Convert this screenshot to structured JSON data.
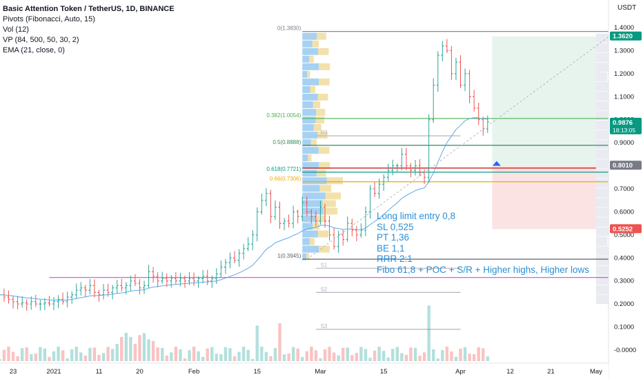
{
  "header": {
    "symbol_line": "Basic Attention Token / TetherUS, 1D, BINANCE",
    "indicators": [
      "Pivots (Fibonacci, Auto, 15)",
      "Vol (12)",
      "VP (84, 500, 50, 30, 2)",
      "EMA (21, close, 0)"
    ]
  },
  "currency": "USDT",
  "trade_note": [
    "Long limit entry 0,8",
    "SL 0,525",
    "PT 1,36",
    "BE 1,1",
    "RRR 2:1",
    "Fibo 61,8 + POC + S/R + Higher highs, Higher lows"
  ],
  "colors": {
    "up": "#26a69a",
    "down": "#ef5350",
    "ema": "#5aa9e6",
    "fib_pink": "#d44ad4",
    "profit_zone": "#e7f4ee",
    "loss_zone": "#fbe3e3",
    "vp_blue": "#4ea4e8",
    "vp_yellow": "#e8c35a",
    "grid_line": "#131722",
    "pivot": "#b2b5be"
  },
  "chart_data": {
    "type": "candlestick",
    "ylim": [
      -0.03,
      1.43
    ],
    "y_ticks": [
      "1.4000",
      "1.3000",
      "1.2000",
      "1.1000",
      "1.0000",
      "0.9000",
      "0.8000",
      "0.7000",
      "0.6000",
      "0.5000",
      "0.4000",
      "0.3000",
      "0.2000",
      "0.1000",
      "-0.0000"
    ],
    "x_ticks": [
      {
        "label": "23",
        "d": -9
      },
      {
        "label": "2021",
        "d": 0
      },
      {
        "label": "11",
        "d": 10
      },
      {
        "label": "20",
        "d": 19
      },
      {
        "label": "Feb",
        "d": 31
      },
      {
        "label": "15",
        "d": 45
      },
      {
        "label": "Mar",
        "d": 59
      },
      {
        "label": "15",
        "d": 73
      },
      {
        "label": "Apr",
        "d": 90
      },
      {
        "label": "12",
        "d": 101
      },
      {
        "label": "21",
        "d": 110
      },
      {
        "label": "May",
        "d": 120
      }
    ],
    "price_labels": [
      {
        "text": "1.3620",
        "value": 1.362,
        "color": "#089981"
      },
      {
        "text": "0.9876",
        "value": 0.9876,
        "sub": "18:13:05",
        "color": "#089981"
      },
      {
        "text": "0.8010",
        "value": 0.801,
        "color": "#787b86"
      },
      {
        "text": "0.5252",
        "value": 0.5252,
        "color": "#ef5350"
      }
    ],
    "fib_levels": [
      {
        "label": "0(1.3830)",
        "value": 1.383,
        "color": "#787b86"
      },
      {
        "label": "0.382(1.0054)",
        "value": 1.0054,
        "color": "#4caf50"
      },
      {
        "label": "0.5(0.8888)",
        "value": 0.8888,
        "color": "#2e8b57"
      },
      {
        "label": "0.618(0.7721)",
        "value": 0.7721,
        "color": "#089981"
      },
      {
        "label": "0.66(0.7306)",
        "value": 0.7306,
        "color": "#f0a800"
      },
      {
        "label": "1(0.3945)",
        "value": 0.3945,
        "color": "#5d606b"
      }
    ],
    "pivots": [
      {
        "label": "R3",
        "value": 0.93
      },
      {
        "label": "S1",
        "value": 0.355
      },
      {
        "label": "S2",
        "value": 0.25
      },
      {
        "label": "S3",
        "value": 0.09
      }
    ],
    "pink_level": 0.315,
    "entry": 0.8,
    "stop": 0.5252,
    "target": 1.362,
    "closes": [
      0.24,
      0.23,
      0.22,
      0.21,
      0.2,
      0.205,
      0.2,
      0.21,
      0.2,
      0.2,
      0.205,
      0.2,
      0.21,
      0.22,
      0.21,
      0.23,
      0.24,
      0.26,
      0.27,
      0.26,
      0.28,
      0.25,
      0.24,
      0.26,
      0.25,
      0.27,
      0.28,
      0.27,
      0.28,
      0.3,
      0.29,
      0.27,
      0.28,
      0.34,
      0.32,
      0.3,
      0.31,
      0.3,
      0.31,
      0.3,
      0.31,
      0.3,
      0.31,
      0.3,
      0.31,
      0.32,
      0.3,
      0.31,
      0.33,
      0.36,
      0.38,
      0.4,
      0.39,
      0.42,
      0.44,
      0.46,
      0.5,
      0.6,
      0.65,
      0.68,
      0.58,
      0.62,
      0.55,
      0.56,
      0.55,
      0.6,
      0.58,
      0.64,
      0.6,
      0.58,
      0.56,
      0.62,
      0.56,
      0.5,
      0.45,
      0.5,
      0.48,
      0.55,
      0.52,
      0.5,
      0.52,
      0.6,
      0.7,
      0.68,
      0.72,
      0.75,
      0.78,
      0.8,
      0.8,
      0.85,
      0.8,
      0.78,
      0.8,
      0.77,
      0.75,
      1.0,
      1.15,
      1.28,
      1.32,
      1.3,
      1.2,
      1.25,
      1.15,
      1.2,
      1.1,
      1.05,
      1.0,
      0.96,
      0.99
    ]
  }
}
